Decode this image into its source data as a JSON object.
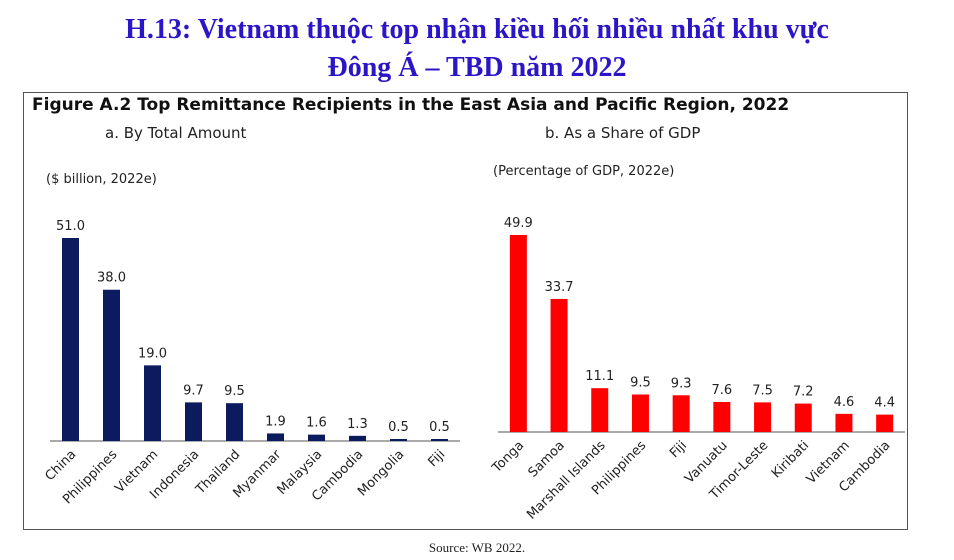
{
  "header": {
    "line1": "H.13: Vietnam thuộc top nhận kiều hối nhiều nhất khu vực",
    "line2": "Đông Á – TBD năm 2022"
  },
  "figure": {
    "title": "Figure A.2 Top Remittance Recipients in the East Asia and Pacific Region, 2022"
  },
  "source": "Source: WB 2022.",
  "colors": {
    "title": "#2b16c7",
    "left_bars": "#0c1a5e",
    "right_bars": "#ff0000"
  },
  "chart_data": [
    {
      "type": "bar",
      "title": "a. By Total Amount",
      "unit_label": "($ billion, 2022e)",
      "categories": [
        "China",
        "Philippines",
        "Vietnam",
        "Indonesia",
        "Thailand",
        "Myanmar",
        "Malaysia",
        "Cambodia",
        "Mongolia",
        "Fiji"
      ],
      "values": [
        51.0,
        38.0,
        19.0,
        9.7,
        9.5,
        1.9,
        1.6,
        1.3,
        0.5,
        0.5
      ],
      "value_labels": [
        "51.0",
        "38.0",
        "19.0",
        "9.7",
        "9.5",
        "1.9",
        "1.6",
        "1.3",
        "0.5",
        "0.5"
      ],
      "ylim": [
        0,
        51
      ],
      "grid": false,
      "legend": "none"
    },
    {
      "type": "bar",
      "title": "b. As a Share of GDP",
      "unit_label": "(Percentage of GDP, 2022e)",
      "categories": [
        "Tonga",
        "Samoa",
        "Marshall Islands",
        "Philippines",
        "Fiji",
        "Vanuatu",
        "Timor-Leste",
        "Kiribati",
        "Vietnam",
        "Cambodia"
      ],
      "values": [
        49.9,
        33.7,
        11.1,
        9.5,
        9.3,
        7.6,
        7.5,
        7.2,
        4.6,
        4.4
      ],
      "value_labels": [
        "49.9",
        "33.7",
        "11.1",
        "9.5",
        "9.3",
        "7.6",
        "7.5",
        "7.2",
        "4.6",
        "4.4"
      ],
      "ylim": [
        0,
        49.9
      ],
      "grid": false,
      "legend": "none"
    }
  ]
}
